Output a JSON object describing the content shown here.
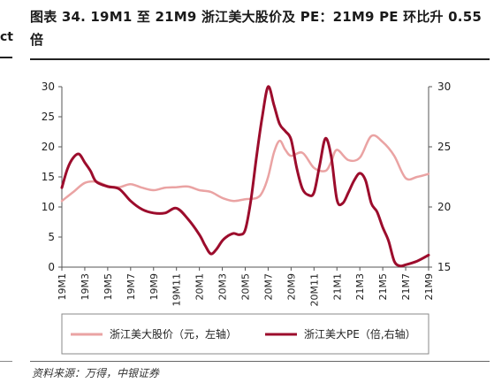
{
  "page": {
    "title": "图表 34. 19M1 至 21M9 浙江美大股价及 PE：21M9 PE 环比升 0.55 倍",
    "left_fragment": "ct",
    "source": "资料来源：万得，中银证券"
  },
  "colors": {
    "price": "#eaa3a3",
    "pe": "#9c0c2c",
    "axis": "#555555"
  },
  "chart_data": {
    "type": "line",
    "title": "图表 34. 19M1 至 21M9 浙江美大股价及 PE：21M9 PE 环比升 0.55 倍",
    "categories": [
      "19M1",
      "19M3",
      "19M5",
      "19M7",
      "19M9",
      "19M11",
      "20M1",
      "20M3",
      "20M5",
      "20M7",
      "20M9",
      "20M11",
      "21M1",
      "21M3",
      "21M5",
      "21M7",
      "21M9"
    ],
    "x": [
      0,
      2,
      4,
      6,
      8,
      10,
      12,
      14,
      16,
      18,
      20,
      22,
      24,
      26,
      28,
      30,
      32
    ],
    "ylim_left": [
      0,
      30
    ],
    "yticks_left": [
      0,
      5,
      10,
      15,
      20,
      25,
      30
    ],
    "ylim_right": [
      15,
      30
    ],
    "yticks_right": [
      15,
      20,
      25,
      30
    ],
    "grid": false,
    "legend_position": "bottom",
    "series": [
      {
        "name": "浙江美大股价（元，左轴）",
        "axis": "left",
        "color": "#eaa3a3",
        "x": [
          0,
          1,
          2,
          3,
          4,
          5,
          6,
          7,
          8,
          9,
          10,
          11,
          12,
          13,
          14,
          15,
          16,
          17,
          17.5,
          18,
          18.5,
          19,
          19.5,
          20,
          21,
          22,
          23,
          23.5,
          24,
          25,
          26,
          27,
          28,
          29,
          30,
          31,
          32
        ],
        "values": [
          11,
          12.5,
          14,
          14.2,
          13.5,
          13.3,
          13.8,
          13.2,
          12.8,
          13.2,
          13.3,
          13.4,
          12.8,
          12.5,
          11.5,
          11,
          11.3,
          11.5,
          12.5,
          15,
          19,
          21,
          19.5,
          18.5,
          19,
          16.5,
          16,
          17.5,
          19.5,
          17.8,
          18.2,
          21.8,
          20.8,
          18.5,
          14.8,
          15,
          15.5
        ]
      },
      {
        "name": "浙江美大PE（倍,右轴）",
        "axis": "right",
        "color": "#9c0c2c",
        "x": [
          0,
          0.5,
          1,
          1.5,
          2,
          2.5,
          3,
          4,
          5,
          6,
          7,
          8,
          9,
          10,
          11,
          12,
          12.5,
          13,
          13.5,
          14,
          14.5,
          15,
          15.5,
          16,
          16.5,
          17,
          17.5,
          18,
          18.5,
          19,
          19.5,
          20,
          20.5,
          21,
          21.5,
          22,
          22.5,
          23,
          23.5,
          24,
          24.5,
          25,
          25.5,
          26,
          26.5,
          27,
          27.5,
          28,
          28.5,
          29,
          29.5,
          30,
          31,
          32
        ],
        "values": [
          21.6,
          23.2,
          24.1,
          24.4,
          23.7,
          23,
          22.1,
          21.7,
          21.5,
          20.5,
          19.8,
          19.5,
          19.5,
          19.9,
          19,
          17.7,
          16.8,
          16.1,
          16.5,
          17.2,
          17.6,
          17.8,
          17.7,
          18.1,
          20.6,
          24.3,
          27.6,
          30,
          28.5,
          26.9,
          26.3,
          25.6,
          23.2,
          21.5,
          21,
          21.2,
          23.5,
          25.7,
          24.2,
          20.6,
          20.3,
          21.2,
          22.2,
          22.8,
          22.2,
          20.3,
          19.6,
          18.3,
          17.2,
          15.5,
          15.1,
          15.2,
          15.5,
          16
        ]
      }
    ]
  },
  "legend": {
    "items": [
      {
        "label": "浙江美大股价（元，左轴）",
        "color": "#eaa3a3"
      },
      {
        "label": "浙江美大PE（倍,右轴）",
        "color": "#9c0c2c"
      }
    ]
  }
}
